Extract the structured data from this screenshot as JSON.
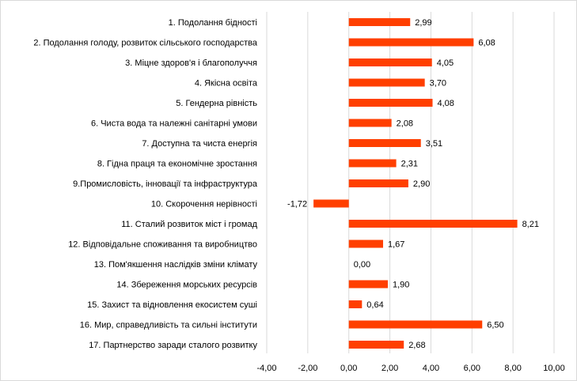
{
  "chart_data": {
    "type": "bar",
    "orientation": "horizontal",
    "categories": [
      "1. Подолання бідності",
      "2. Подолання голоду, розвиток сільського господарства",
      "3. Міцне здоров'я і благополуччя",
      "4. Якісна освіта",
      "5. Гендерна рівність",
      "6. Чиста вода та належні санітарні умови",
      "7. Доступна та чиста енергія",
      "8. Гідна праця та економічне зростання",
      "9.Промисловість, інновації та інфраструктура",
      "10. Скорочення нерівності",
      "11. Сталий розвиток міст і громад",
      "12. Відповідальне споживання та виробництво",
      "13. Пом'якшення наслідків зміни клімату",
      "14. Збереження морських ресурсів",
      "15. Захист та відновлення екосистем суші",
      "16. Мир, справедливість та сильні інститути",
      "17. Партнерство заради сталого розвитку"
    ],
    "values": [
      2.99,
      6.08,
      4.05,
      3.7,
      4.08,
      2.08,
      3.51,
      2.31,
      2.9,
      -1.72,
      8.21,
      1.67,
      0.0,
      1.9,
      0.64,
      6.5,
      2.68
    ],
    "value_labels": [
      "2,99",
      "6,08",
      "4,05",
      "3,70",
      "4,08",
      "2,08",
      "3,51",
      "2,31",
      "2,90",
      "-1,72",
      "8,21",
      "1,67",
      "0,00",
      "1,90",
      "0,64",
      "6,50",
      "2,68"
    ],
    "xlim": [
      -4,
      10
    ],
    "x_ticks": [
      -4,
      -2,
      0,
      2,
      4,
      6,
      8,
      10
    ],
    "x_tick_labels": [
      "-4,00",
      "-2,00",
      "0,00",
      "2,00",
      "4,00",
      "6,00",
      "8,00",
      "10,00"
    ],
    "title": "",
    "xlabel": "",
    "ylabel": "",
    "grid": "vertical",
    "legend": "none",
    "colors": {
      "bar": "#ff3f00",
      "grid": "#d9d9d9"
    }
  }
}
